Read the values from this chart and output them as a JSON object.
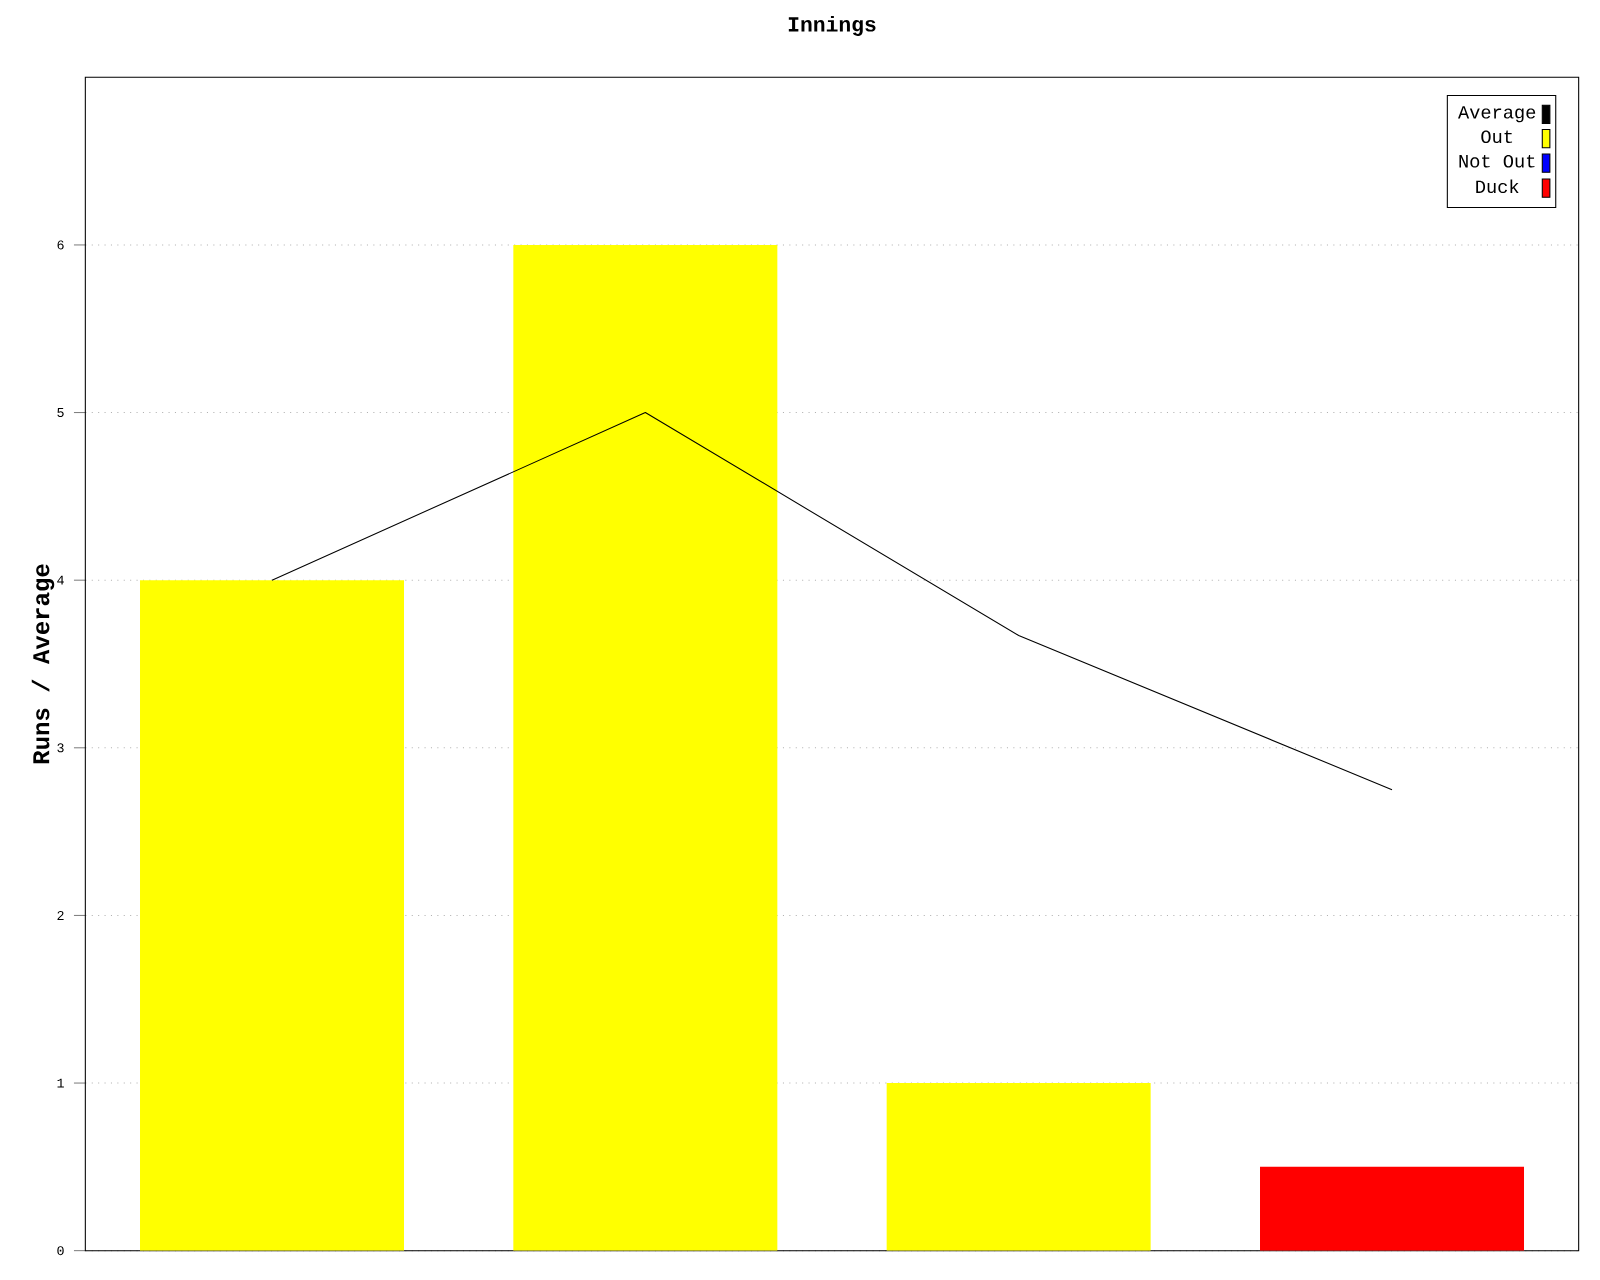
{
  "chart_data": {
    "type": "bar",
    "title": "Innings",
    "ylabel": "Runs / Average",
    "categories": [
      null,
      null,
      null,
      null
    ],
    "series": [
      {
        "name": "Average",
        "type": "line",
        "color": "#000000",
        "values": [
          4,
          5,
          3.67,
          2.75
        ]
      },
      {
        "name": "Out",
        "color": "#ffff00",
        "values": [
          4,
          6,
          1,
          null
        ]
      },
      {
        "name": "Not Out",
        "color": "#0000ff",
        "values": [
          null,
          null,
          null,
          null
        ]
      },
      {
        "name": "Duck",
        "color": "#ff0000",
        "values": [
          null,
          null,
          null,
          0.5
        ]
      }
    ],
    "ylim": [
      0,
      7
    ],
    "yticks": [
      0,
      1,
      2,
      3,
      4,
      5,
      6
    ],
    "grid": "y",
    "legend": "top right",
    "tick_labels": "y",
    "marker": "none"
  }
}
